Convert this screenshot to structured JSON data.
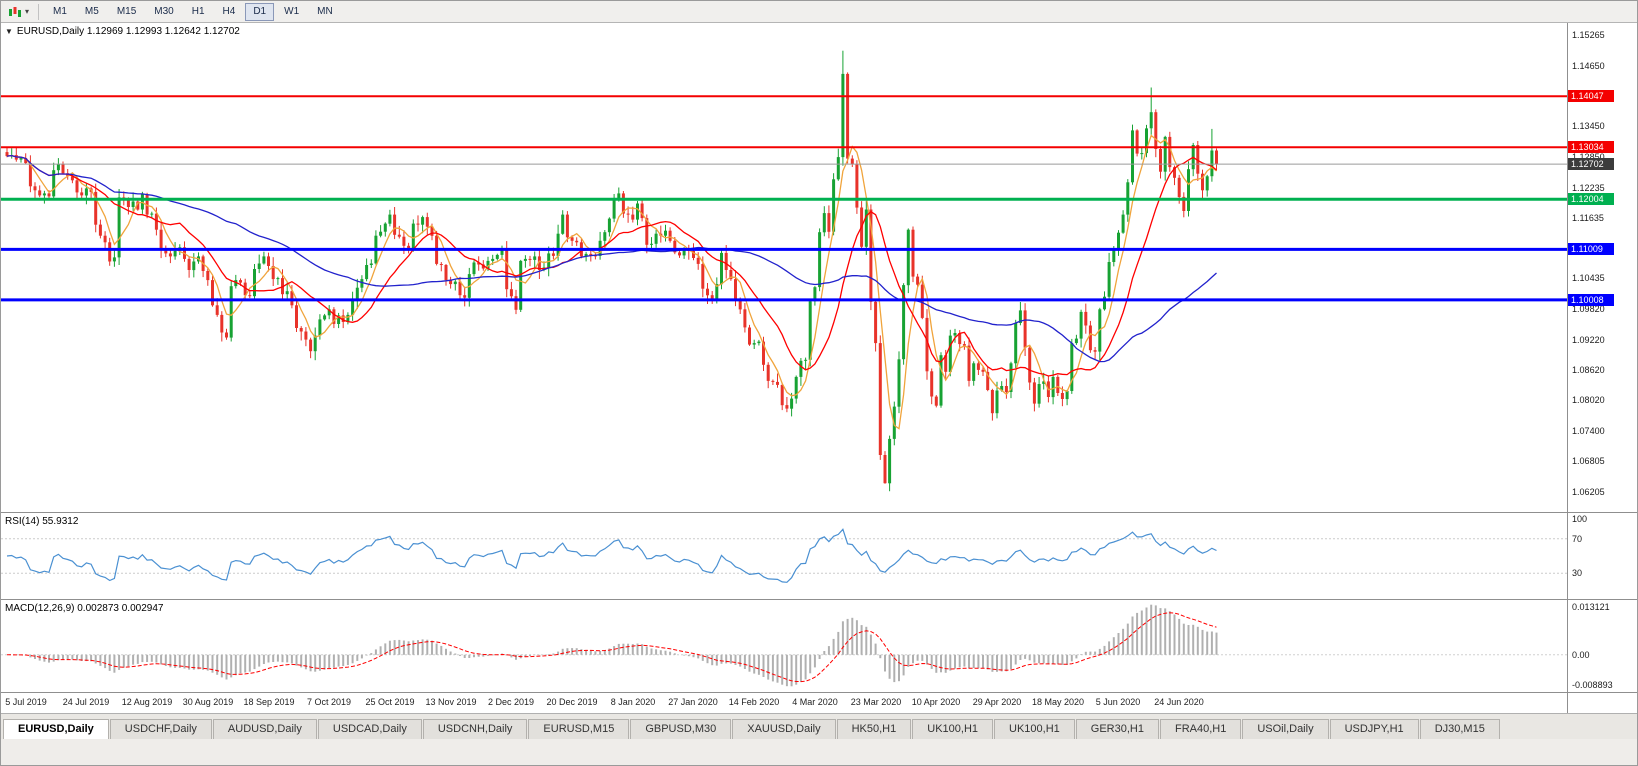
{
  "toolbar": {
    "chart_type_icon": "chart-candles",
    "dropdown_caret": "▾",
    "timeframes": [
      "M1",
      "M5",
      "M15",
      "M30",
      "H1",
      "H4",
      "D1",
      "W1",
      "MN"
    ],
    "active_timeframe": "D1"
  },
  "chart": {
    "title_arrow": "▼",
    "title": "EURUSD,Daily 1.12969 1.12993 1.12642 1.12702"
  },
  "chart_data": {
    "type": "candlestick",
    "symbol": "EURUSD",
    "timeframe": "Daily",
    "ohlc_display": {
      "open": "1.12969",
      "high": "1.12993",
      "low": "1.12642",
      "close": "1.12702"
    },
    "y_range": {
      "top": 1.155,
      "bottom": 1.058
    },
    "up_color": "#17A233",
    "down_color": "#E8332A",
    "closes": [
      1.1286,
      1.1288,
      1.1279,
      1.1282,
      1.1272,
      1.1226,
      1.1218,
      1.1208,
      1.1212,
      1.1206,
      1.1258,
      1.127,
      1.1252,
      1.1246,
      1.1238,
      1.1214,
      1.1208,
      1.1222,
      1.1215,
      1.115,
      1.1128,
      1.1115,
      1.1077,
      1.1085,
      1.1204,
      1.12,
      1.1185,
      1.1196,
      1.118,
      1.121,
      1.117,
      1.1172,
      1.114,
      1.11,
      1.1093,
      1.1087,
      1.1098,
      1.1105,
      1.1082,
      1.106,
      1.1077,
      1.1087,
      1.1058,
      1.104,
      1.099,
      1.0971,
      1.0936,
      1.0926,
      1.1028,
      1.104,
      1.1035,
      1.101,
      1.1008,
      1.1062,
      1.1073,
      1.1087,
      1.1068,
      1.1042,
      1.1044,
      1.1012,
      1.1018,
      1.099,
      1.0945,
      1.0938,
      1.0922,
      1.0899,
      1.093,
      1.0962,
      1.097,
      1.0982,
      1.0953,
      1.097,
      1.0957,
      1.0971,
      1.1,
      1.1025,
      1.1042,
      1.107,
      1.1073,
      1.1128,
      1.1136,
      1.1152,
      1.117,
      1.113,
      1.1126,
      1.1108,
      1.1102,
      1.1152,
      1.115,
      1.1165,
      1.1146,
      1.1128,
      1.1072,
      1.107,
      1.104,
      1.1032,
      1.1037,
      1.101,
      1.1005,
      1.1052,
      1.1075,
      1.1071,
      1.1063,
      1.1078,
      1.1082,
      1.109,
      1.11,
      1.1022,
      1.1008,
      1.0981,
      1.1078,
      1.1082,
      1.108,
      1.1087,
      1.106,
      1.1065,
      1.1093,
      1.1088,
      1.1132,
      1.117,
      1.1125,
      1.1118,
      1.1115,
      1.1087,
      1.1092,
      1.1089,
      1.1088,
      1.1118,
      1.1135,
      1.1162,
      1.1199,
      1.1212,
      1.1172,
      1.117,
      1.116,
      1.1192,
      1.1163,
      1.111,
      1.1112,
      1.1132,
      1.1128,
      1.1138,
      1.1118,
      1.1095,
      1.1089,
      1.1103,
      1.1098,
      1.1084,
      1.1072,
      1.1023,
      1.101,
      1.1002,
      1.1032,
      1.1094,
      1.106,
      1.1042,
      1.1,
      1.0982,
      1.0946,
      1.0912,
      1.0915,
      1.0918,
      1.0872,
      1.084,
      1.0838,
      1.0832,
      1.0792,
      1.0785,
      1.0805,
      1.0848,
      1.088,
      1.0882,
      1.0998,
      1.1026,
      1.1135,
      1.1173,
      1.1136,
      1.124,
      1.1284,
      1.1449,
      1.1281,
      1.127,
      1.1184,
      1.1106,
      1.118,
      1.0997,
      1.0915,
      1.0693,
      1.0637,
      1.0725,
      1.0789,
      1.0883,
      1.103,
      1.114,
      1.1047,
      1.1031,
      1.0965,
      1.0859,
      1.0809,
      1.0791,
      1.0891,
      1.0858,
      1.093,
      1.0935,
      1.0913,
      1.091,
      1.084,
      1.0875,
      1.0862,
      1.0858,
      1.0822,
      1.0776,
      1.0821,
      1.083,
      1.0818,
      1.0875,
      1.0955,
      1.098,
      1.0906,
      1.0837,
      1.0795,
      1.0834,
      1.0839,
      1.0808,
      1.0848,
      1.0816,
      1.0804,
      1.082,
      1.0915,
      1.0924,
      1.0977,
      1.095,
      1.0901,
      1.0898,
      1.0982,
      1.1007,
      1.1076,
      1.1101,
      1.1134,
      1.117,
      1.1234,
      1.1337,
      1.1291,
      1.1292,
      1.1341,
      1.1373,
      1.13,
      1.1255,
      1.1324,
      1.1264,
      1.1243,
      1.1205,
      1.1177,
      1.126,
      1.1308,
      1.1251,
      1.1218,
      1.1246,
      1.1297,
      1.12702
    ],
    "wick_overrides": {
      "167": {
        "l": 1.0778
      },
      "179": {
        "h": 1.1495
      },
      "188": {
        "l": 1.0636
      },
      "245": {
        "h": 1.1422
      },
      "258": {
        "h": 1.134
      }
    },
    "overlays": [
      {
        "name": "ma-fast",
        "type": "sma",
        "period": 5,
        "color": "#F0A43C"
      },
      {
        "name": "ma-mid",
        "type": "sma",
        "period": 14,
        "color": "#FF0000"
      },
      {
        "name": "ma-slow",
        "type": "sma",
        "period": 50,
        "color": "#2222CC"
      }
    ],
    "levels": [
      {
        "label": "1.14047",
        "price": 1.14047,
        "color": "#F40000",
        "width": 2
      },
      {
        "label": "1.13034",
        "price": 1.13034,
        "color": "#F40000",
        "width": 2
      },
      {
        "label": "1.12004",
        "price": 1.12004,
        "color": "#00B050",
        "width": 3
      },
      {
        "label": "1.11009",
        "price": 1.11009,
        "color": "#0000FF",
        "width": 3
      },
      {
        "label": "1.10008",
        "price": 1.10008,
        "color": "#0000FF",
        "width": 3
      }
    ],
    "current_price": {
      "value": 1.12702,
      "label": "1.12702",
      "line_color": "#9a9a9a",
      "label_bg": "#3c3c3c"
    },
    "price_axis_ticks": [
      "1.15265",
      "1.14650",
      "1.13450",
      "1.12850",
      "1.12235",
      "1.11635",
      "1.10435",
      "1.09820",
      "1.09220",
      "1.08620",
      "1.08020",
      "1.07400",
      "1.06805",
      "1.06205"
    ],
    "x_label_start_index": 4,
    "x_label_step": 13,
    "dates": [
      "5 Jul 2019",
      "24 Jul 2019",
      "12 Aug 2019",
      "30 Aug 2019",
      "18 Sep 2019",
      "7 Oct 2019",
      "25 Oct 2019",
      "13 Nov 2019",
      "2 Dec 2019",
      "20 Dec 2019",
      "8 Jan 2020",
      "27 Jan 2020",
      "14 Feb 2020",
      "4 Mar 2020",
      "23 Mar 2020",
      "10 Apr 2020",
      "29 Apr 2020",
      "18 May 2020",
      "5 Jun 2020",
      "24 Jun 2020"
    ],
    "indicators": {
      "rsi": {
        "label": "RSI(14) 55.9312",
        "period": 14,
        "value": 55.9312,
        "color": "#4A90D2",
        "levels": [
          70,
          30
        ],
        "axis_labels": [
          "100",
          "70",
          "30"
        ]
      },
      "macd": {
        "label": "MACD(12,26,9) 0.002873 0.002947",
        "fast": 12,
        "slow": 26,
        "signal": 9,
        "main_value": 0.002873,
        "signal_value": 0.002947,
        "hist_color": "#B0B0B0",
        "signal_color": "#FF0000",
        "axis_labels": [
          "0.013121",
          "0.00",
          "-0.008893"
        ],
        "y_max": 0.013121,
        "y_min": -0.008893
      }
    }
  },
  "tabs": [
    {
      "label": "EURUSD,Daily",
      "active": true
    },
    {
      "label": "USDCHF,Daily",
      "active": false
    },
    {
      "label": "AUDUSD,Daily",
      "active": false
    },
    {
      "label": "USDCAD,Daily",
      "active": false
    },
    {
      "label": "USDCNH,Daily",
      "active": false
    },
    {
      "label": "EURUSD,M15",
      "active": false
    },
    {
      "label": "GBPUSD,M30",
      "active": false
    },
    {
      "label": "XAUUSD,Daily",
      "active": false
    },
    {
      "label": "HK50,H1",
      "active": false
    },
    {
      "label": "UK100,H1",
      "active": false
    },
    {
      "label": "UK100,H1",
      "active": false
    },
    {
      "label": "GER30,H1",
      "active": false
    },
    {
      "label": "FRA40,H1",
      "active": false
    },
    {
      "label": "USOil,Daily",
      "active": false
    },
    {
      "label": "USDJPY,H1",
      "active": false
    },
    {
      "label": "DJ30,M15",
      "active": false
    }
  ]
}
